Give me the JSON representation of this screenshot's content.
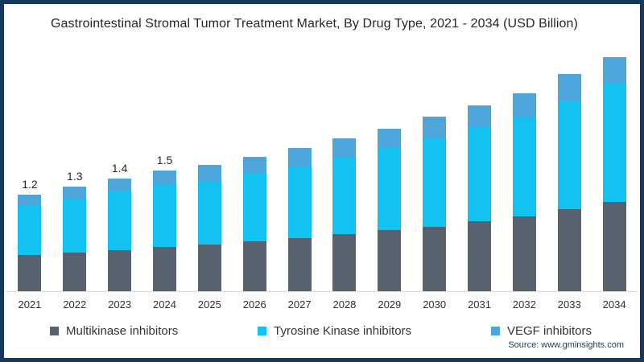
{
  "title": "Gastrointestinal Stromal Tumor Treatment Market, By Drug Type, 2021 - 2034 (USD Billion)",
  "source": "Source: www.gminsights.com",
  "frame_border_color": "#14395c",
  "legend": [
    {
      "label": "Multikinase inhibitors",
      "color": "#57626e"
    },
    {
      "label": "Tyrosine Kinase inhibitors",
      "color": "#13c2f0"
    },
    {
      "label": "VEGF inhibitors",
      "color": "#4da5dc"
    }
  ],
  "chart_data": {
    "type": "bar",
    "stacked": true,
    "title": "Gastrointestinal Stromal Tumor Treatment Market, By Drug Type, 2021 - 2034 (USD Billion)",
    "unit": "USD Billion",
    "xlabel": "",
    "ylabel": "",
    "ylim": [
      0,
      3
    ],
    "grid": false,
    "y_axis_visible": false,
    "legend_position": "bottom",
    "categories": [
      "2021",
      "2022",
      "2023",
      "2024",
      "2025",
      "2026",
      "2027",
      "2028",
      "2029",
      "2030",
      "2031",
      "2032",
      "2033",
      "2034"
    ],
    "series": [
      {
        "name": "Multikinase inhibitors",
        "color": "#57626e",
        "values": [
          0.45,
          0.48,
          0.51,
          0.55,
          0.58,
          0.62,
          0.66,
          0.71,
          0.76,
          0.8,
          0.87,
          0.93,
          1.02,
          1.11
        ]
      },
      {
        "name": "Tyrosine Kinase inhibitors",
        "color": "#13c2f0",
        "values": [
          0.62,
          0.67,
          0.74,
          0.77,
          0.79,
          0.85,
          0.89,
          0.96,
          1.02,
          1.11,
          1.17,
          1.24,
          1.35,
          1.47
        ]
      },
      {
        "name": "VEGF inhibitors",
        "color": "#4da5dc",
        "values": [
          0.13,
          0.15,
          0.15,
          0.18,
          0.2,
          0.2,
          0.23,
          0.23,
          0.24,
          0.26,
          0.27,
          0.29,
          0.33,
          0.33
        ]
      }
    ],
    "totals": [
      1.2,
      1.3,
      1.4,
      1.5,
      1.57,
      1.67,
      1.78,
      1.9,
      2.02,
      2.17,
      2.31,
      2.46,
      2.7,
      2.91
    ],
    "bar_labels": [
      "1.2",
      "1.3",
      "1.4",
      "1.5",
      "",
      "",
      "",
      "",
      "",
      "",
      "",
      "",
      "",
      ""
    ]
  }
}
